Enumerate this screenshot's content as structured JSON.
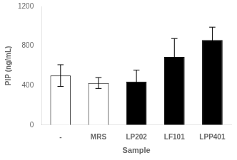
{
  "chart_data": {
    "type": "bar",
    "categories": [
      "-",
      "MRS",
      "LP202",
      "LF101",
      "LPP401"
    ],
    "values": [
      500,
      425,
      440,
      690,
      860
    ],
    "errors": [
      110,
      55,
      115,
      185,
      130
    ],
    "colors": [
      "white",
      "white",
      "black",
      "black",
      "black"
    ],
    "xlabel": "Sample",
    "ylabel": "PIP (ng/mL)",
    "ylim": [
      0,
      1200
    ],
    "yticks": [
      0,
      400,
      800,
      1200
    ],
    "grid": false,
    "tick_labels": true
  }
}
